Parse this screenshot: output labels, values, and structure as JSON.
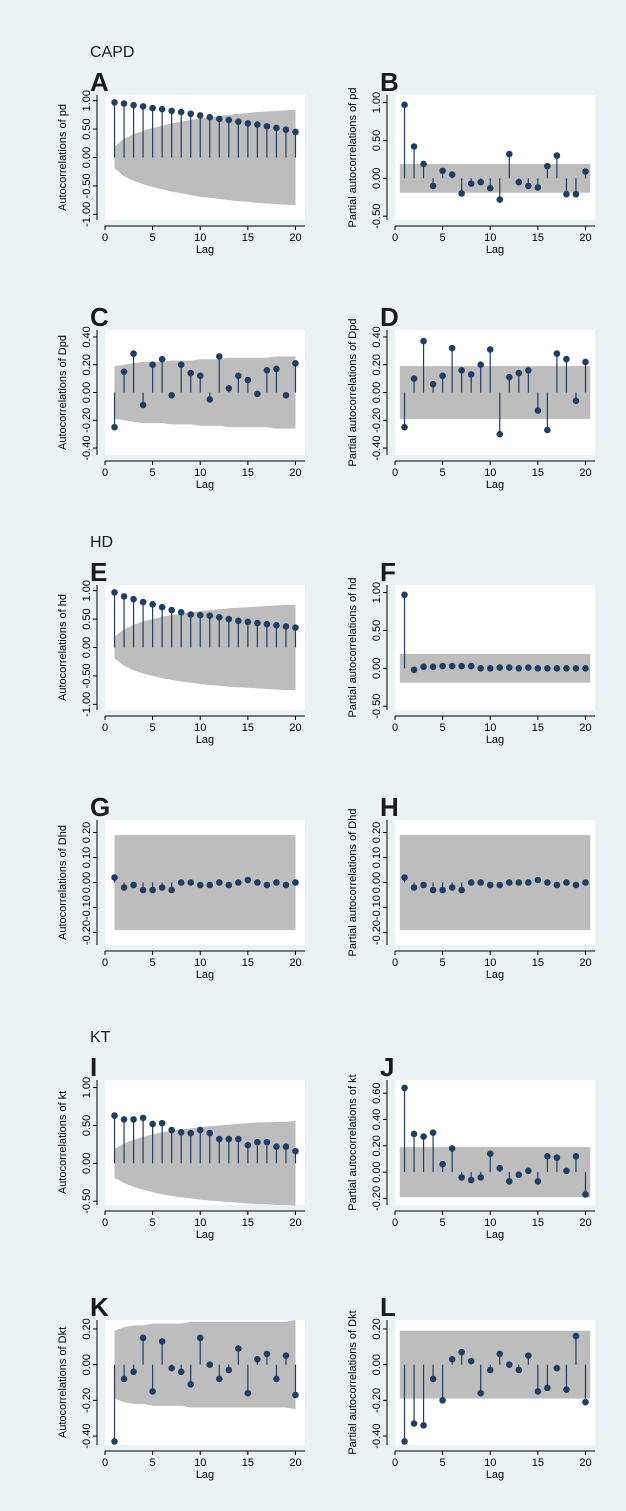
{
  "group_titles": [
    {
      "text": "CAPD",
      "panel": 0
    },
    {
      "text": "HD",
      "panel": 4
    },
    {
      "text": "KT",
      "panel": 8
    }
  ],
  "colors": {
    "background": "#eaf2f3",
    "plot_area": "#ffffff",
    "band": "#bdbdbd",
    "marker": "#1f3e63",
    "axis": "#000000"
  },
  "chart_data": [
    {
      "type": "correlogram-acf",
      "letter": "A",
      "xlabel": "Lag",
      "ylabel": "Autocorrelations of pd",
      "xlim": [
        0,
        21
      ],
      "xticks": [
        0,
        5,
        10,
        15,
        20
      ],
      "ylim": [
        -1.1,
        1.1
      ],
      "yticks": [
        -1.0,
        -0.5,
        0.0,
        0.5,
        1.0
      ],
      "ytick_labels": [
        "-1.00",
        "-0.50",
        "0.00",
        "0.50",
        "1.00"
      ],
      "band": [
        0.19,
        0.33,
        0.41,
        0.47,
        0.52,
        0.56,
        0.6,
        0.63,
        0.66,
        0.69,
        0.71,
        0.73,
        0.75,
        0.77,
        0.78,
        0.8,
        0.81,
        0.82,
        0.83,
        0.84
      ],
      "values": [
        0.97,
        0.95,
        0.92,
        0.9,
        0.87,
        0.85,
        0.82,
        0.8,
        0.77,
        0.74,
        0.71,
        0.68,
        0.66,
        0.63,
        0.6,
        0.58,
        0.55,
        0.52,
        0.49,
        0.45
      ]
    },
    {
      "type": "correlogram-pacf",
      "letter": "B",
      "xlabel": "Lag",
      "ylabel": "Partial autocorrelations of pd",
      "xlim": [
        0,
        21
      ],
      "xticks": [
        0,
        5,
        10,
        15,
        20
      ],
      "ylim": [
        -0.55,
        1.1
      ],
      "yticks": [
        -0.5,
        0.0,
        0.5,
        1.0
      ],
      "ytick_labels": [
        "-0.50",
        "0.00",
        "0.50",
        "1.00"
      ],
      "band": 0.19,
      "values": [
        0.97,
        0.42,
        0.19,
        -0.1,
        0.1,
        0.05,
        -0.2,
        -0.07,
        -0.05,
        -0.13,
        -0.28,
        0.32,
        -0.05,
        -0.1,
        -0.12,
        0.16,
        0.3,
        -0.21,
        -0.21,
        0.09
      ]
    },
    {
      "type": "correlogram-acf",
      "letter": "C",
      "xlabel": "Lag",
      "ylabel": "Autocorrelations of Dpd",
      "xlim": [
        0,
        21
      ],
      "xticks": [
        0,
        5,
        10,
        15,
        20
      ],
      "ylim": [
        -0.45,
        0.45
      ],
      "yticks": [
        -0.4,
        -0.2,
        0.0,
        0.2,
        0.4
      ],
      "ytick_labels": [
        "-0.40",
        "-0.20",
        "0.00",
        "0.20",
        "0.40"
      ],
      "band": [
        0.19,
        0.2,
        0.21,
        0.22,
        0.22,
        0.22,
        0.23,
        0.23,
        0.23,
        0.24,
        0.24,
        0.24,
        0.25,
        0.25,
        0.25,
        0.25,
        0.25,
        0.26,
        0.26,
        0.26
      ],
      "values": [
        -0.25,
        0.15,
        0.28,
        -0.09,
        0.2,
        0.24,
        -0.02,
        0.2,
        0.14,
        0.12,
        -0.05,
        0.26,
        0.03,
        0.12,
        0.09,
        -0.01,
        0.16,
        0.17,
        -0.02,
        0.21
      ]
    },
    {
      "type": "correlogram-pacf",
      "letter": "D",
      "xlabel": "Lag",
      "ylabel": "Partial autocorrelations of Dpd",
      "xlim": [
        0,
        21
      ],
      "xticks": [
        0,
        5,
        10,
        15,
        20
      ],
      "ylim": [
        -0.45,
        0.45
      ],
      "yticks": [
        -0.4,
        -0.2,
        0.0,
        0.2,
        0.4
      ],
      "ytick_labels": [
        "-0.40",
        "-0.20",
        "0.00",
        "0.20",
        "0.40"
      ],
      "band": 0.19,
      "values": [
        -0.25,
        0.1,
        0.37,
        0.06,
        0.12,
        0.32,
        0.16,
        0.13,
        0.2,
        0.31,
        -0.3,
        0.11,
        0.14,
        0.16,
        -0.13,
        -0.27,
        0.28,
        0.24,
        -0.06,
        0.22
      ]
    },
    {
      "type": "correlogram-acf",
      "letter": "E",
      "xlabel": "Lag",
      "ylabel": "Autocorrelations of hd",
      "xlim": [
        0,
        21
      ],
      "xticks": [
        0,
        5,
        10,
        15,
        20
      ],
      "ylim": [
        -1.1,
        1.1
      ],
      "yticks": [
        -1.0,
        -0.5,
        0.0,
        0.5,
        1.0
      ],
      "ytick_labels": [
        "-1.00",
        "-0.50",
        "0.00",
        "0.50",
        "1.00"
      ],
      "band": [
        0.19,
        0.32,
        0.4,
        0.46,
        0.5,
        0.54,
        0.57,
        0.6,
        0.62,
        0.64,
        0.66,
        0.67,
        0.69,
        0.7,
        0.71,
        0.72,
        0.73,
        0.74,
        0.75,
        0.75
      ],
      "values": [
        0.97,
        0.9,
        0.85,
        0.8,
        0.76,
        0.71,
        0.66,
        0.62,
        0.58,
        0.57,
        0.56,
        0.53,
        0.5,
        0.47,
        0.45,
        0.43,
        0.41,
        0.39,
        0.37,
        0.35
      ]
    },
    {
      "type": "correlogram-pacf",
      "letter": "F",
      "xlabel": "Lag",
      "ylabel": "Partial autocorrelations of hd",
      "xlim": [
        0,
        21
      ],
      "xticks": [
        0,
        5,
        10,
        15,
        20
      ],
      "ylim": [
        -0.55,
        1.1
      ],
      "yticks": [
        -0.5,
        0.0,
        0.5,
        1.0
      ],
      "ytick_labels": [
        "-0.50",
        "0.00",
        "0.50",
        "1.00"
      ],
      "band": 0.19,
      "values": [
        0.97,
        -0.02,
        0.02,
        0.02,
        0.03,
        0.03,
        0.03,
        0.03,
        0.0,
        0.0,
        0.01,
        0.01,
        0.0,
        0.01,
        0.0,
        0.0,
        0.0,
        0.0,
        0.0,
        0.0
      ]
    },
    {
      "type": "correlogram-acf",
      "letter": "G",
      "xlabel": "Lag",
      "ylabel": "Autocorrelations of Dhd",
      "xlim": [
        0,
        21
      ],
      "xticks": [
        0,
        5,
        10,
        15,
        20
      ],
      "ylim": [
        -0.25,
        0.25
      ],
      "yticks": [
        -0.2,
        -0.1,
        0.0,
        0.1,
        0.2
      ],
      "ytick_labels": [
        "-0.20",
        "-0.10",
        "0.00",
        "0.10",
        "0.20"
      ],
      "band": [
        0.19,
        0.19,
        0.19,
        0.19,
        0.19,
        0.19,
        0.19,
        0.19,
        0.19,
        0.19,
        0.19,
        0.19,
        0.19,
        0.19,
        0.19,
        0.19,
        0.19,
        0.19,
        0.19,
        0.19
      ],
      "values": [
        0.02,
        -0.02,
        -0.01,
        -0.03,
        -0.03,
        -0.02,
        -0.03,
        0.0,
        0.0,
        -0.01,
        -0.01,
        0.0,
        -0.01,
        0.0,
        0.01,
        0.0,
        -0.01,
        0.0,
        -0.01,
        0.0
      ]
    },
    {
      "type": "correlogram-pacf",
      "letter": "H",
      "xlabel": "Lag",
      "ylabel": "Partial autocorrelations of Dhd",
      "xlim": [
        0,
        21
      ],
      "xticks": [
        0,
        5,
        10,
        15,
        20
      ],
      "ylim": [
        -0.25,
        0.25
      ],
      "yticks": [
        -0.2,
        -0.1,
        0.0,
        0.1,
        0.2
      ],
      "ytick_labels": [
        "-0.20",
        "-0.10",
        "0.00",
        "0.10",
        "0.20"
      ],
      "band": 0.19,
      "values": [
        0.02,
        -0.02,
        -0.01,
        -0.03,
        -0.03,
        -0.02,
        -0.03,
        0.0,
        0.0,
        -0.01,
        -0.01,
        0.0,
        0.0,
        0.0,
        0.01,
        0.0,
        -0.01,
        0.0,
        -0.01,
        0.0
      ]
    },
    {
      "type": "correlogram-acf",
      "letter": "I",
      "xlabel": "Lag",
      "ylabel": "Autocorrelations of kt",
      "xlim": [
        0,
        21
      ],
      "xticks": [
        0,
        5,
        10,
        15,
        20
      ],
      "ylim": [
        -0.55,
        1.1
      ],
      "yticks": [
        -0.5,
        0.0,
        0.5,
        1.0
      ],
      "ytick_labels": [
        "-0.50",
        "0.00",
        "0.50",
        "1.00"
      ],
      "band": [
        0.19,
        0.26,
        0.31,
        0.35,
        0.38,
        0.41,
        0.43,
        0.45,
        0.46,
        0.48,
        0.49,
        0.5,
        0.51,
        0.52,
        0.53,
        0.54,
        0.54,
        0.55,
        0.55,
        0.56
      ],
      "values": [
        0.63,
        0.58,
        0.58,
        0.6,
        0.52,
        0.53,
        0.44,
        0.41,
        0.4,
        0.44,
        0.4,
        0.32,
        0.32,
        0.32,
        0.24,
        0.28,
        0.28,
        0.22,
        0.22,
        0.16
      ]
    },
    {
      "type": "correlogram-pacf",
      "letter": "J",
      "xlabel": "Lag",
      "ylabel": "Partial autocorrelations of kt",
      "xlim": [
        0,
        21
      ],
      "xticks": [
        0,
        5,
        10,
        15,
        20
      ],
      "ylim": [
        -0.25,
        0.7
      ],
      "yticks": [
        -0.2,
        0.0,
        0.2,
        0.4,
        0.6
      ],
      "ytick_labels": [
        "-0.20",
        "0.00",
        "0.20",
        "0.40",
        "0.60"
      ],
      "band": 0.19,
      "values": [
        0.64,
        0.29,
        0.27,
        0.3,
        0.06,
        0.18,
        -0.04,
        -0.06,
        -0.04,
        0.14,
        0.03,
        -0.07,
        -0.02,
        0.01,
        -0.07,
        0.12,
        0.11,
        0.01,
        0.12,
        -0.17
      ]
    },
    {
      "type": "correlogram-acf",
      "letter": "K",
      "xlabel": "Lag",
      "ylabel": "Autocorrelations of Dkt",
      "xlim": [
        0,
        21
      ],
      "xticks": [
        0,
        5,
        10,
        15,
        20
      ],
      "ylim": [
        -0.45,
        0.25
      ],
      "yticks": [
        -0.4,
        -0.2,
        0.0,
        0.2
      ],
      "ytick_labels": [
        "-0.40",
        "-0.20",
        "0.00",
        "0.20"
      ],
      "band": [
        0.19,
        0.21,
        0.22,
        0.22,
        0.23,
        0.23,
        0.23,
        0.23,
        0.24,
        0.24,
        0.24,
        0.24,
        0.24,
        0.24,
        0.24,
        0.24,
        0.24,
        0.24,
        0.24,
        0.25
      ],
      "values": [
        -0.43,
        -0.08,
        -0.04,
        0.15,
        -0.15,
        0.13,
        -0.02,
        -0.04,
        -0.11,
        0.15,
        0.0,
        -0.08,
        -0.03,
        0.09,
        -0.16,
        0.03,
        0.06,
        -0.08,
        0.05,
        -0.17
      ]
    },
    {
      "type": "correlogram-pacf",
      "letter": "L",
      "xlabel": "Lag",
      "ylabel": "Partial autocorrelations of Dkt",
      "xlim": [
        0,
        21
      ],
      "xticks": [
        0,
        5,
        10,
        15,
        20
      ],
      "ylim": [
        -0.45,
        0.25
      ],
      "yticks": [
        -0.4,
        -0.2,
        0.0,
        0.2
      ],
      "ytick_labels": [
        "-0.40",
        "-0.20",
        "0.00",
        "0.20"
      ],
      "band": 0.19,
      "values": [
        -0.43,
        -0.33,
        -0.34,
        -0.08,
        -0.2,
        0.03,
        0.07,
        0.02,
        -0.16,
        -0.03,
        0.06,
        0.0,
        -0.03,
        0.05,
        -0.15,
        -0.13,
        -0.02,
        -0.14,
        0.16,
        -0.21
      ]
    }
  ]
}
